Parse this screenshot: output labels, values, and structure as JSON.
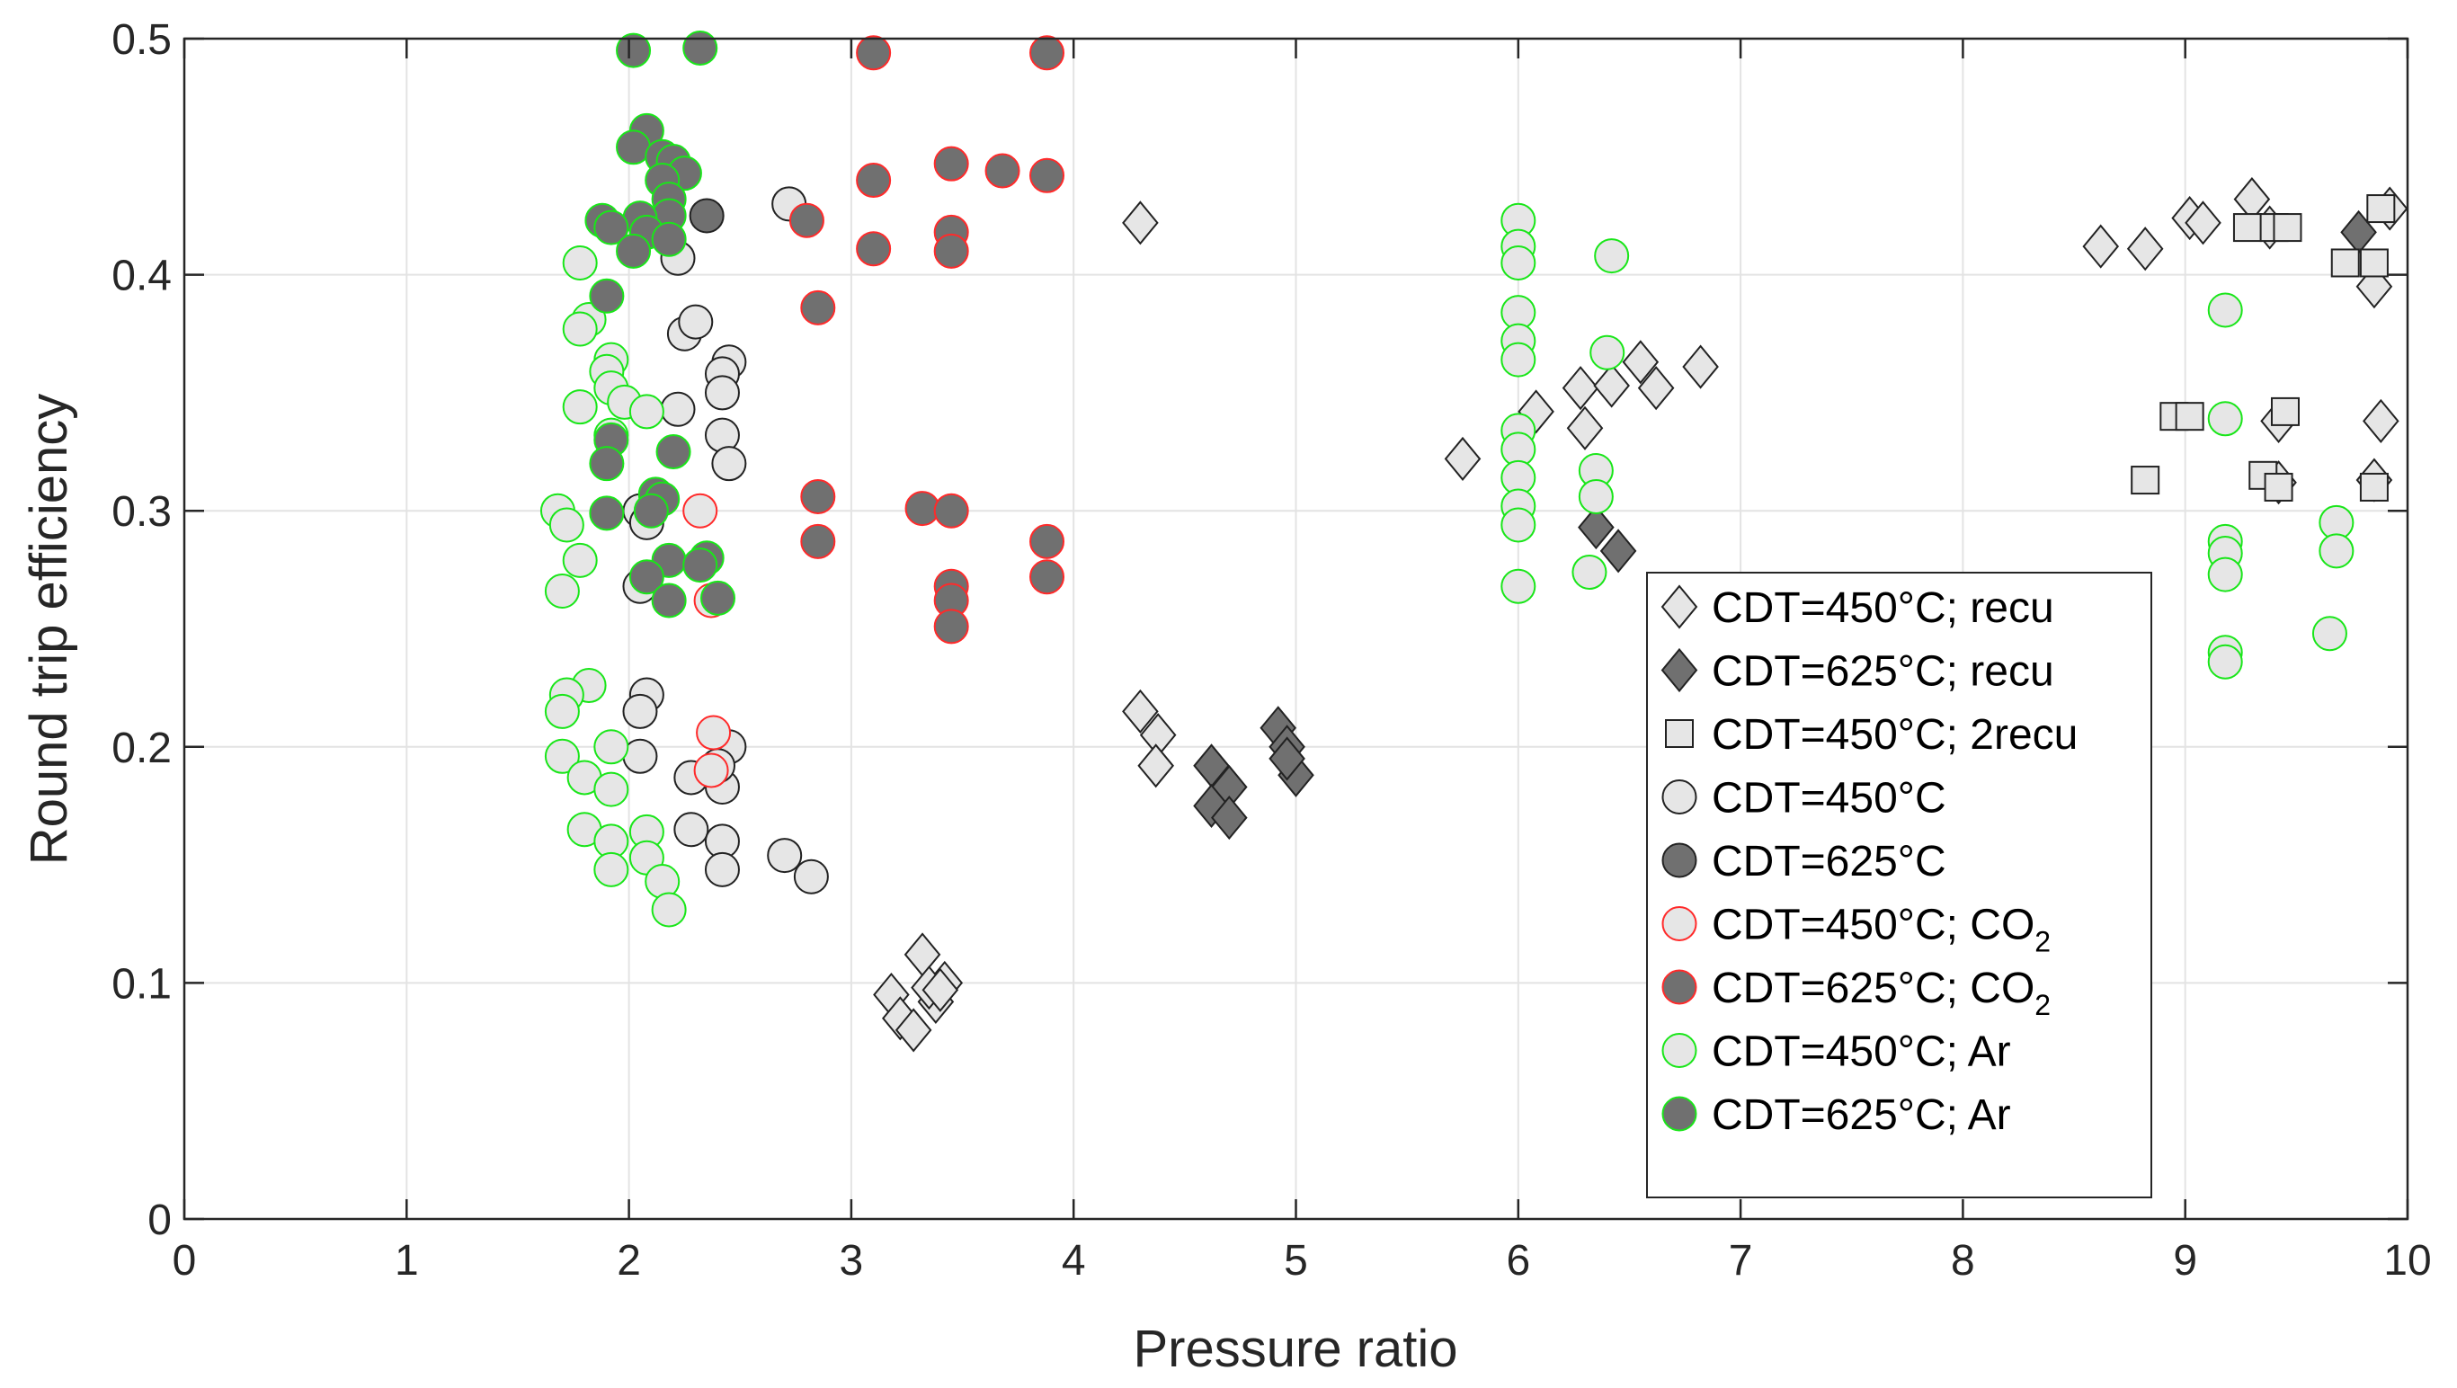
{
  "chart_data": {
    "type": "scatter",
    "title": "",
    "xlabel": "Pressure ratio",
    "ylabel": "Round trip efficiency",
    "xlim": [
      0,
      10
    ],
    "ylim": [
      0,
      0.5
    ],
    "xticks": [
      "0",
      "1",
      "2",
      "3",
      "4",
      "5",
      "6",
      "7",
      "8",
      "9",
      "10"
    ],
    "yticks": [
      "0",
      "0.1",
      "0.2",
      "0.3",
      "0.4",
      "0.5"
    ],
    "grid": true,
    "legend_position": "bottom-right-inside",
    "colors": {
      "light_fill": "#e6e6e6",
      "dark_fill": "#707070",
      "black_edge": "#222222",
      "co2_edge": "#ff2a2a",
      "ar_edge": "#19e619",
      "grid": "#e3e3e3",
      "axis": "#262626"
    },
    "series": [
      {
        "name": "CDT=450°C; recu",
        "label_main": "CDT=450°C; recu",
        "label_sub": "",
        "marker": "diamond",
        "fill": "#e6e6e6",
        "edge": "#222222",
        "points": [
          [
            4.3,
            0.422
          ],
          [
            4.3,
            0.215
          ],
          [
            4.38,
            0.205
          ],
          [
            4.37,
            0.192
          ],
          [
            3.32,
            0.112
          ],
          [
            3.18,
            0.095
          ],
          [
            3.22,
            0.085
          ],
          [
            3.28,
            0.08
          ],
          [
            3.38,
            0.092
          ],
          [
            3.42,
            0.1
          ],
          [
            3.35,
            0.098
          ],
          [
            3.4,
            0.097
          ],
          [
            5.75,
            0.322
          ],
          [
            6.08,
            0.342
          ],
          [
            6.28,
            0.352
          ],
          [
            6.3,
            0.335
          ],
          [
            6.42,
            0.353
          ],
          [
            6.55,
            0.363
          ],
          [
            6.62,
            0.352
          ],
          [
            6.82,
            0.361
          ],
          [
            8.62,
            0.412
          ],
          [
            8.82,
            0.411
          ],
          [
            9.02,
            0.424
          ],
          [
            9.08,
            0.422
          ],
          [
            9.3,
            0.432
          ],
          [
            9.38,
            0.42
          ],
          [
            9.42,
            0.338
          ],
          [
            9.42,
            0.312
          ],
          [
            9.85,
            0.313
          ],
          [
            9.88,
            0.338
          ],
          [
            9.85,
            0.395
          ],
          [
            9.92,
            0.428
          ]
        ]
      },
      {
        "name": "CDT=625°C; recu",
        "label_main": "CDT=625°C; recu",
        "label_sub": "",
        "marker": "diamond",
        "fill": "#707070",
        "edge": "#222222",
        "points": [
          [
            4.62,
            0.192
          ],
          [
            4.7,
            0.183
          ],
          [
            4.62,
            0.175
          ],
          [
            4.7,
            0.17
          ],
          [
            4.92,
            0.208
          ],
          [
            4.96,
            0.2
          ],
          [
            5.0,
            0.188
          ],
          [
            4.96,
            0.195
          ],
          [
            6.35,
            0.293
          ],
          [
            6.45,
            0.283
          ],
          [
            9.78,
            0.418
          ]
        ]
      },
      {
        "name": "CDT=450°C; 2recu",
        "label_main": "CDT=450°C; 2recu",
        "label_sub": "",
        "marker": "square",
        "fill": "#e6e6e6",
        "edge": "#222222",
        "points": [
          [
            8.82,
            0.313
          ],
          [
            8.95,
            0.34
          ],
          [
            9.02,
            0.34
          ],
          [
            9.28,
            0.42
          ],
          [
            9.4,
            0.42
          ],
          [
            9.46,
            0.42
          ],
          [
            9.35,
            0.315
          ],
          [
            9.42,
            0.31
          ],
          [
            9.45,
            0.342
          ],
          [
            9.72,
            0.405
          ],
          [
            9.85,
            0.405
          ],
          [
            9.88,
            0.428
          ],
          [
            9.85,
            0.31
          ]
        ]
      },
      {
        "name": "CDT=450°C",
        "label_main": "CDT=450°C",
        "label_sub": "",
        "marker": "circle",
        "fill": "#e6e6e6",
        "edge": "#222222",
        "points": [
          [
            2.72,
            0.43
          ],
          [
            2.22,
            0.407
          ],
          [
            2.25,
            0.375
          ],
          [
            2.3,
            0.38
          ],
          [
            2.45,
            0.363
          ],
          [
            2.42,
            0.358
          ],
          [
            2.42,
            0.35
          ],
          [
            2.22,
            0.343
          ],
          [
            2.42,
            0.332
          ],
          [
            2.45,
            0.32
          ],
          [
            2.05,
            0.3
          ],
          [
            2.08,
            0.295
          ],
          [
            2.05,
            0.268
          ],
          [
            2.08,
            0.222
          ],
          [
            2.05,
            0.215
          ],
          [
            2.05,
            0.196
          ],
          [
            2.28,
            0.187
          ],
          [
            2.42,
            0.183
          ],
          [
            2.45,
            0.2
          ],
          [
            2.4,
            0.192
          ],
          [
            2.28,
            0.165
          ],
          [
            2.42,
            0.16
          ],
          [
            2.42,
            0.148
          ],
          [
            2.7,
            0.154
          ],
          [
            2.82,
            0.145
          ]
        ]
      },
      {
        "name": "CDT=625°C",
        "label_main": "CDT=625°C",
        "label_sub": "",
        "marker": "circle",
        "fill": "#707070",
        "edge": "#222222",
        "points": [
          [
            2.35,
            0.425
          ]
        ]
      },
      {
        "name": "CDT=450°C; CO2",
        "label_main": "CDT=450°C; CO",
        "label_sub": "2",
        "marker": "circle",
        "fill": "#e6e6e6",
        "edge": "#ff2a2a",
        "points": [
          [
            2.32,
            0.3
          ],
          [
            2.38,
            0.206
          ],
          [
            2.37,
            0.19
          ],
          [
            2.37,
            0.262
          ]
        ]
      },
      {
        "name": "CDT=625°C; CO2",
        "label_main": "CDT=625°C; CO",
        "label_sub": "2",
        "marker": "circle",
        "fill": "#707070",
        "edge": "#ff2a2a",
        "points": [
          [
            3.1,
            0.494
          ],
          [
            3.88,
            0.494
          ],
          [
            3.1,
            0.44
          ],
          [
            3.45,
            0.447
          ],
          [
            3.68,
            0.444
          ],
          [
            3.88,
            0.442
          ],
          [
            2.8,
            0.423
          ],
          [
            3.1,
            0.411
          ],
          [
            3.45,
            0.418
          ],
          [
            3.45,
            0.41
          ],
          [
            2.85,
            0.386
          ],
          [
            2.85,
            0.306
          ],
          [
            3.32,
            0.301
          ],
          [
            3.45,
            0.3
          ],
          [
            2.85,
            0.287
          ],
          [
            3.88,
            0.287
          ],
          [
            3.88,
            0.272
          ],
          [
            3.45,
            0.268
          ],
          [
            3.45,
            0.262
          ],
          [
            3.45,
            0.251
          ]
        ]
      },
      {
        "name": "CDT=450°C; Ar",
        "label_main": "CDT=450°C; Ar",
        "label_sub": "",
        "marker": "circle",
        "fill": "#e6e6e6",
        "edge": "#19e619",
        "points": [
          [
            1.78,
            0.405
          ],
          [
            1.82,
            0.381
          ],
          [
            1.78,
            0.377
          ],
          [
            1.92,
            0.364
          ],
          [
            1.9,
            0.359
          ],
          [
            1.92,
            0.352
          ],
          [
            1.98,
            0.346
          ],
          [
            1.78,
            0.344
          ],
          [
            2.08,
            0.342
          ],
          [
            1.92,
            0.332
          ],
          [
            1.68,
            0.3
          ],
          [
            1.72,
            0.294
          ],
          [
            1.78,
            0.279
          ],
          [
            1.7,
            0.266
          ],
          [
            1.82,
            0.226
          ],
          [
            1.72,
            0.222
          ],
          [
            1.7,
            0.215
          ],
          [
            1.92,
            0.2
          ],
          [
            1.7,
            0.196
          ],
          [
            1.8,
            0.187
          ],
          [
            1.92,
            0.182
          ],
          [
            1.8,
            0.165
          ],
          [
            2.08,
            0.164
          ],
          [
            1.92,
            0.16
          ],
          [
            2.08,
            0.153
          ],
          [
            1.92,
            0.148
          ],
          [
            2.15,
            0.143
          ],
          [
            2.18,
            0.131
          ],
          [
            6.0,
            0.423
          ],
          [
            6.0,
            0.412
          ],
          [
            6.0,
            0.405
          ],
          [
            6.0,
            0.384
          ],
          [
            6.0,
            0.372
          ],
          [
            6.0,
            0.364
          ],
          [
            6.0,
            0.334
          ],
          [
            6.0,
            0.326
          ],
          [
            6.0,
            0.314
          ],
          [
            6.0,
            0.302
          ],
          [
            6.0,
            0.294
          ],
          [
            6.0,
            0.268
          ],
          [
            6.42,
            0.408
          ],
          [
            6.4,
            0.367
          ],
          [
            6.35,
            0.317
          ],
          [
            6.35,
            0.306
          ],
          [
            6.32,
            0.274
          ],
          [
            9.18,
            0.385
          ],
          [
            9.18,
            0.339
          ],
          [
            9.18,
            0.287
          ],
          [
            9.18,
            0.282
          ],
          [
            9.18,
            0.273
          ],
          [
            9.18,
            0.24
          ],
          [
            9.18,
            0.236
          ],
          [
            9.68,
            0.295
          ],
          [
            9.68,
            0.283
          ],
          [
            9.65,
            0.248
          ]
        ]
      },
      {
        "name": "CDT=625°C; Ar",
        "label_main": "CDT=625°C; Ar",
        "label_sub": "",
        "marker": "circle",
        "fill": "#707070",
        "edge": "#19e619",
        "points": [
          [
            2.02,
            0.495
          ],
          [
            2.32,
            0.496
          ],
          [
            2.08,
            0.461
          ],
          [
            2.02,
            0.454
          ],
          [
            2.15,
            0.45
          ],
          [
            2.2,
            0.448
          ],
          [
            2.25,
            0.443
          ],
          [
            2.15,
            0.44
          ],
          [
            2.18,
            0.432
          ],
          [
            2.18,
            0.425
          ],
          [
            2.05,
            0.424
          ],
          [
            1.88,
            0.423
          ],
          [
            1.92,
            0.42
          ],
          [
            2.08,
            0.418
          ],
          [
            2.18,
            0.415
          ],
          [
            2.02,
            0.41
          ],
          [
            1.9,
            0.391
          ],
          [
            1.92,
            0.33
          ],
          [
            2.2,
            0.325
          ],
          [
            1.9,
            0.32
          ],
          [
            2.12,
            0.307
          ],
          [
            2.15,
            0.305
          ],
          [
            2.1,
            0.3
          ],
          [
            1.9,
            0.299
          ],
          [
            2.35,
            0.28
          ],
          [
            2.18,
            0.279
          ],
          [
            2.32,
            0.277
          ],
          [
            2.08,
            0.272
          ],
          [
            2.18,
            0.262
          ],
          [
            2.4,
            0.263
          ]
        ]
      }
    ]
  }
}
